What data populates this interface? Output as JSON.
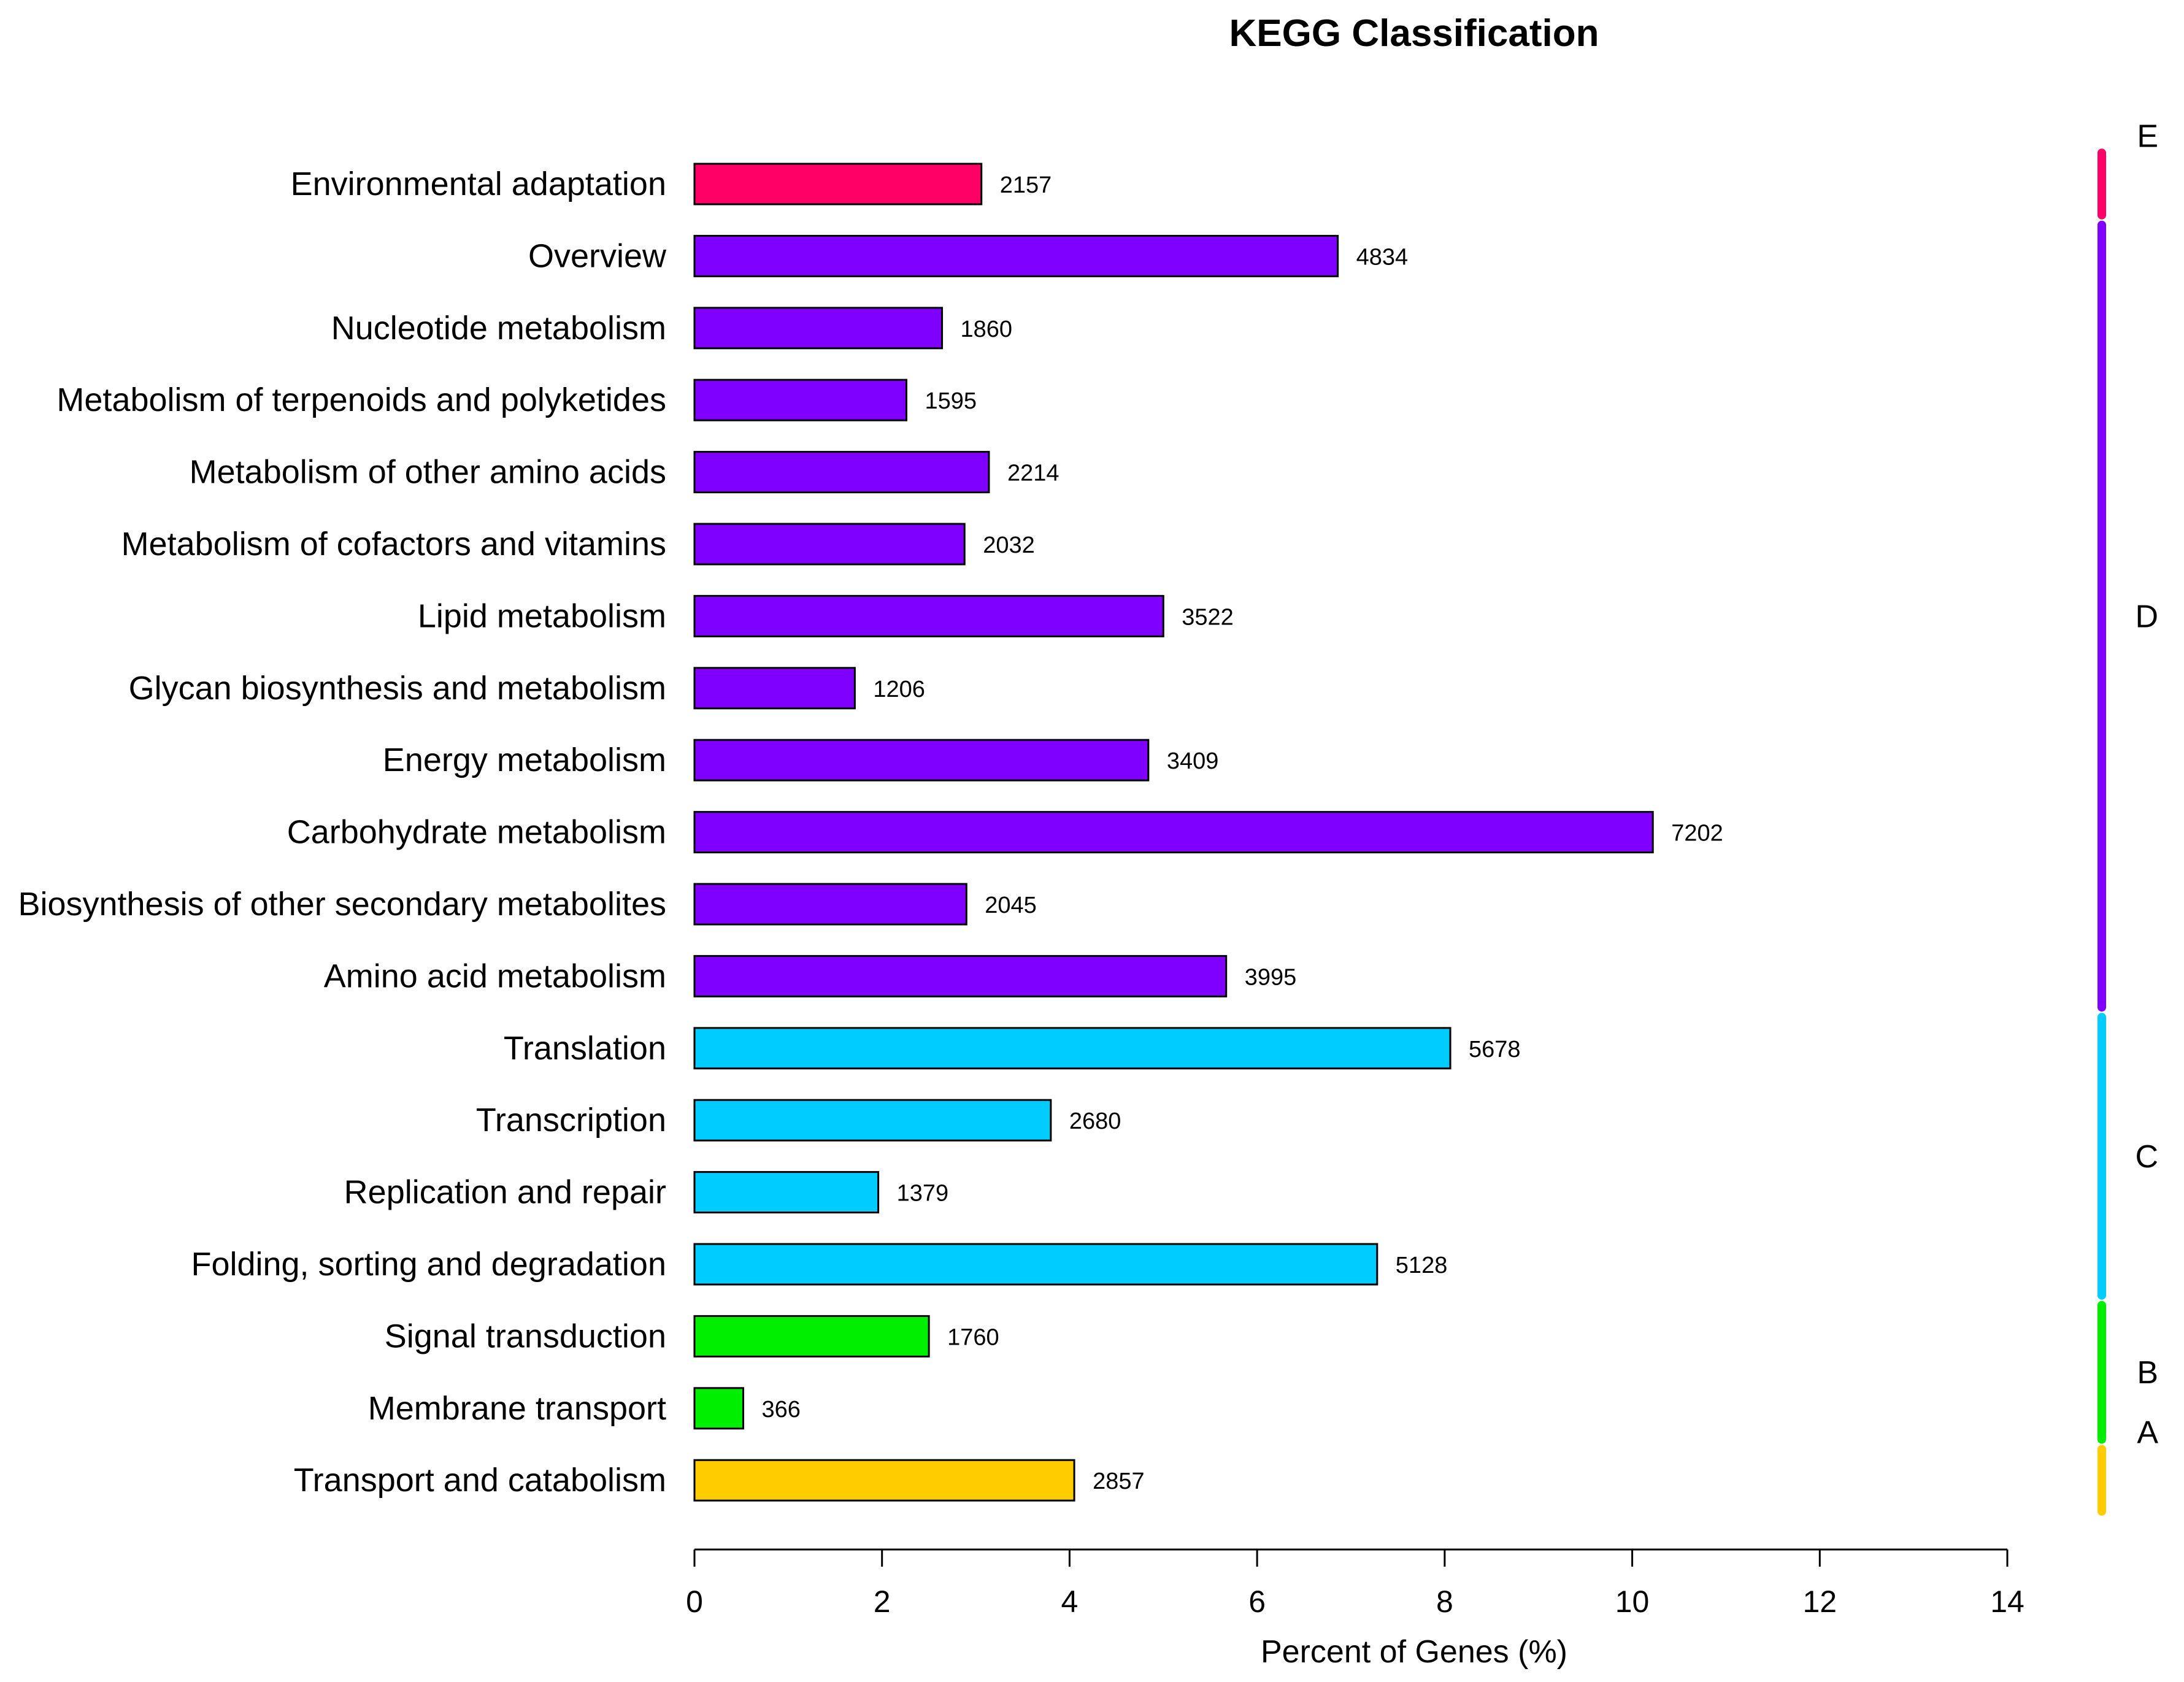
{
  "chart_data": {
    "type": "bar",
    "orientation": "horizontal",
    "title": "KEGG Classification",
    "xlabel": "Percent of Genes (%)",
    "ylabel": "",
    "xlim": [
      0,
      14
    ],
    "xticks": [
      "0",
      "2",
      "4",
      "6",
      "8",
      "10",
      "12",
      "14"
    ],
    "categories": [
      "Environmental adaptation",
      "Overview",
      "Nucleotide metabolism",
      "Metabolism of terpenoids and polyketides",
      "Metabolism of other amino acids",
      "Metabolism of cofactors and vitamins",
      "Lipid metabolism",
      "Glycan biosynthesis and metabolism",
      "Energy metabolism",
      "Carbohydrate metabolism",
      "Biosynthesis of other secondary metabolites",
      "Amino acid metabolism",
      "Translation",
      "Transcription",
      "Replication and repair",
      "Folding, sorting and degradation",
      "Signal transduction",
      "Membrane transport",
      "Transport and catabolism"
    ],
    "values": [
      3.06,
      6.86,
      2.64,
      2.26,
      3.14,
      2.88,
      5.0,
      1.71,
      4.84,
      10.22,
      2.9,
      5.67,
      8.06,
      3.8,
      1.96,
      7.28,
      2.5,
      0.52,
      4.05
    ],
    "counts": [
      "2157",
      "4834",
      "1860",
      "1595",
      "2214",
      "2032",
      "3522",
      "1206",
      "3409",
      "7202",
      "2045",
      "3995",
      "5678",
      "2680",
      "1379",
      "5128",
      "1760",
      "366",
      "2857"
    ],
    "groups": [
      "E",
      "D",
      "D",
      "D",
      "D",
      "D",
      "D",
      "D",
      "D",
      "D",
      "D",
      "D",
      "C",
      "C",
      "C",
      "C",
      "B",
      "B",
      "A"
    ],
    "group_labels": [
      "E",
      "D",
      "C",
      "B",
      "A"
    ],
    "group_colors": {
      "E": "#ff0066",
      "D": "#7f00ff",
      "C": "#00ccff",
      "B": "#00ee00",
      "A": "#ffcc00"
    },
    "grid": false,
    "legend": "right-side colored group brackets"
  }
}
